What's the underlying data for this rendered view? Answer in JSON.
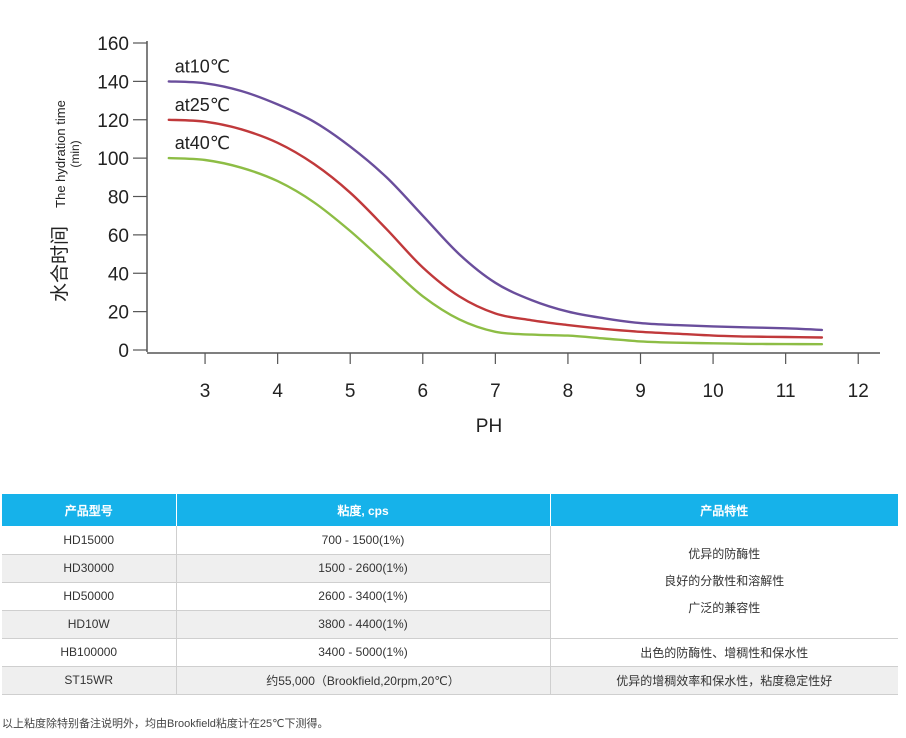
{
  "chart_data": {
    "type": "line",
    "xlabel": "PH",
    "ylabel_cn": "水合时间",
    "ylabel_en_1": "The hydration time",
    "ylabel_en_2": "(min)",
    "xlim": [
      2.2,
      12.3
    ],
    "ylim": [
      0,
      160
    ],
    "x_ticks": [
      3,
      4,
      5,
      6,
      7,
      8,
      9,
      10,
      11,
      12
    ],
    "y_ticks": [
      0,
      20,
      40,
      60,
      80,
      100,
      120,
      140,
      160
    ],
    "grid": false,
    "series": [
      {
        "name": "at10℃",
        "color": "#6a4e9c",
        "x": [
          2.5,
          3.0,
          3.5,
          4.0,
          4.5,
          5.0,
          5.5,
          6.0,
          6.5,
          7.0,
          7.5,
          8.0,
          8.5,
          9.0,
          9.5,
          10.0,
          10.5,
          11.0,
          11.5
        ],
        "y": [
          140,
          139,
          135,
          128,
          119,
          106,
          90,
          70,
          50,
          35,
          26,
          20,
          16.5,
          14,
          13,
          12.3,
          11.8,
          11.3,
          10.5
        ]
      },
      {
        "name": "at25℃",
        "color": "#c0393b",
        "x": [
          2.5,
          3.0,
          3.5,
          4.0,
          4.5,
          5.0,
          5.5,
          6.0,
          6.5,
          7.0,
          7.5,
          8.0,
          8.5,
          9.0,
          9.5,
          10.0,
          10.5,
          11.0,
          11.5
        ],
        "y": [
          120,
          119,
          115,
          108,
          97,
          82,
          63,
          43,
          28,
          19,
          15.5,
          13,
          11,
          9.5,
          8.5,
          7.5,
          7,
          6.8,
          6.5
        ]
      },
      {
        "name": "at40℃",
        "color": "#8dbd45",
        "x": [
          2.5,
          3.0,
          3.5,
          4.0,
          4.5,
          5.0,
          5.5,
          6.0,
          6.5,
          7.0,
          7.5,
          8.0,
          8.5,
          9.0,
          9.5,
          10.0,
          10.5,
          11.0,
          11.5
        ],
        "y": [
          100,
          99,
          95,
          88,
          77,
          62,
          45,
          28,
          16,
          9.5,
          8,
          7.5,
          6,
          4.5,
          3.8,
          3.5,
          3.2,
          3.1,
          3
        ]
      }
    ]
  },
  "table": {
    "headers": [
      "产品型号",
      "粘度, cps",
      "产品特性"
    ],
    "rows": [
      [
        "HD15000",
        "700 - 1500(1%)"
      ],
      [
        "HD30000",
        "1500 - 2600(1%)"
      ],
      [
        "HD50000",
        "2600 - 3400(1%)"
      ],
      [
        "HD10W",
        "3800 - 4400(1%)"
      ],
      [
        "HB100000",
        "3400 - 5000(1%)",
        "出色的防酶性、增稠性和保水性"
      ],
      [
        "ST15WR",
        "约55,000（Brookfield,20rpm,20℃）",
        "优异的增稠效率和保水性，粘度稳定性好"
      ]
    ],
    "merged_features": [
      "优异的防酶性",
      "良好的分散性和溶解性",
      "广泛的兼容性"
    ]
  },
  "footnote": "以上粘度除特别备注说明外，均由Brookfield粘度计在25℃下测得。"
}
